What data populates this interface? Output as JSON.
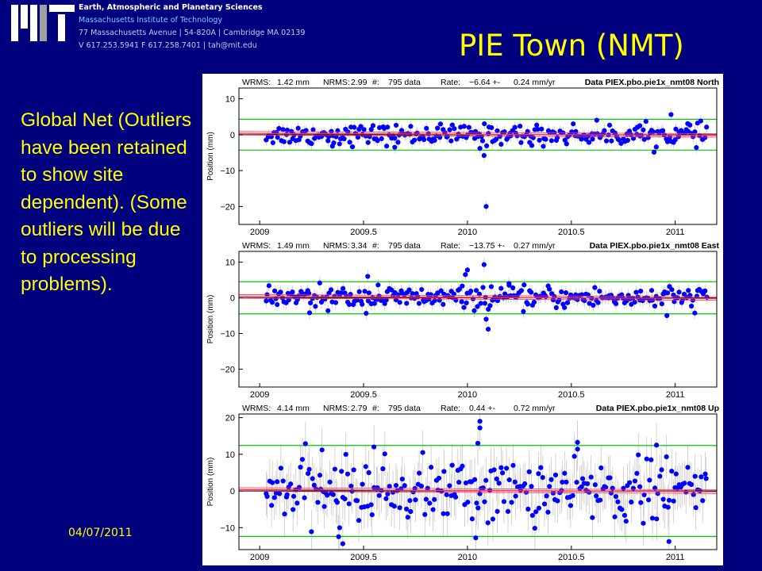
{
  "header": {
    "department": "Earth, Atmospheric and Planetary Sciences",
    "institution": "Massachusetts Institute of Technology",
    "address": "77 Massachusetts Avenue | 54-820A | Cambridge MA 02139",
    "phone": "V 617.253.5941 F 617.258.7401 | tah@mit.edu"
  },
  "slide": {
    "title": "PIE Town (NMT)",
    "caption": "Global Net (Outliers have been retained to show site dependent). (Some outliers will be due to processing problems).",
    "date": "04/07/2011"
  },
  "colors": {
    "background": "#00007f",
    "accent_text": "#ffff00",
    "points": "#0000ff",
    "limit_lines": "#00cc00",
    "fit_line": "#ff3355",
    "error_bars": "#c8c8c8"
  },
  "chart_data": [
    {
      "type": "scatter",
      "title": "Data PIEX.pbo.pie1x_nmt08 North",
      "stats": {
        "wrms": "WRMS:",
        "wrms_value": "1.42 mm",
        "nrms": "NRMS:",
        "nrms_value": "2.99",
        "n": "#:",
        "n_value": "795 data",
        "rate": "Rate:",
        "rate_value": "−6.64 +-",
        "rate_sigma": "0.24 mm/yr"
      },
      "ylabel": "Position (mm)",
      "xlim": [
        2008.9,
        2011.2
      ],
      "ylim": [
        -25,
        13
      ],
      "x_ticks": [
        2009,
        2009.5,
        2010,
        2010.5,
        2011
      ],
      "x_tick_labels": [
        "2009",
        "2009.5",
        "2010",
        "2010.5",
        "2011"
      ],
      "y_ticks": [
        10,
        0,
        -10,
        -20
      ],
      "y_tick_labels": [
        "10",
        "0",
        "−10",
        "−20"
      ],
      "limit_lines": [
        4.3,
        -4.3
      ],
      "scatter_sigma": 1.4,
      "error_bar": 1.6,
      "outliers": [
        [
          2010.06,
          -3.8
        ],
        [
          2010.08,
          -5.8
        ],
        [
          2010.09,
          -20.0
        ],
        [
          2009.35,
          -3.2
        ],
        [
          2010.31,
          -3.0
        ],
        [
          2010.83,
          2.5
        ],
        [
          2010.98,
          5.6
        ],
        [
          2009.65,
          -3.5
        ],
        [
          2011.06,
          3.1
        ]
      ]
    },
    {
      "type": "scatter",
      "title": "Data PIEX.pbo.pie1x_nmt08 East",
      "stats": {
        "wrms": "WRMS:",
        "wrms_value": "1.49 mm",
        "nrms": "NRMS:",
        "nrms_value": "3.34",
        "n": "#:",
        "n_value": "795 data",
        "rate": "Rate:",
        "rate_value": "−13.75 +-",
        "rate_sigma": "0.27 mm/yr"
      },
      "ylabel": "Position (mm)",
      "xlim": [
        2008.9,
        2011.2
      ],
      "ylim": [
        -25,
        13
      ],
      "x_ticks": [
        2009,
        2009.5,
        2010,
        2010.5,
        2011
      ],
      "x_tick_labels": [
        "2009",
        "2009.5",
        "2010",
        "2010.5",
        "2011"
      ],
      "y_ticks": [
        10,
        0,
        -10,
        -20
      ],
      "y_tick_labels": [
        "10",
        "0",
        "−10",
        "−20"
      ],
      "limit_lines": [
        4.5,
        -4.5
      ],
      "scatter_sigma": 1.5,
      "error_bar": 1.8,
      "outliers": [
        [
          2009.52,
          6.0
        ],
        [
          2009.99,
          6.5
        ],
        [
          2010.0,
          7.8
        ],
        [
          2010.08,
          9.3
        ],
        [
          2010.09,
          -6.0
        ],
        [
          2010.1,
          -8.8
        ],
        [
          2009.24,
          -4.2
        ],
        [
          2009.57,
          3.6
        ],
        [
          2010.96,
          -5.0
        ],
        [
          2010.2,
          4.0
        ]
      ]
    },
    {
      "type": "scatter",
      "title": "Data PIEX.pbo.pie1x_nmt08 Up",
      "stats": {
        "wrms": "WRMS:",
        "wrms_value": "4.14 mm",
        "nrms": "NRMS:",
        "nrms_value": "2.79",
        "n": "#:",
        "n_value": "795 data",
        "rate": "Rate:",
        "rate_value": "0.44 +-",
        "rate_sigma": "0.72 mm/yr"
      },
      "ylabel": "Position (mm)",
      "xlim": [
        2008.9,
        2011.2
      ],
      "ylim": [
        -16,
        21
      ],
      "x_ticks": [
        2009,
        2009.5,
        2010,
        2010.5,
        2011
      ],
      "x_tick_labels": [
        "2009",
        "2009.5",
        "2010",
        "2010.5",
        "2011"
      ],
      "y_ticks": [
        20,
        10,
        0,
        -10
      ],
      "y_tick_labels": [
        "20",
        "10",
        "0",
        "−10"
      ],
      "limit_lines": [
        12.4,
        -12.4
      ],
      "scatter_sigma": 4.2,
      "error_bar": 6.0,
      "outliers": [
        [
          2010.06,
          19.0
        ],
        [
          2010.06,
          17.2
        ],
        [
          2010.05,
          13.0
        ],
        [
          2009.4,
          -14.4
        ],
        [
          2009.38,
          -12.5
        ],
        [
          2010.97,
          -13.8
        ],
        [
          2010.04,
          -12.8
        ],
        [
          2009.55,
          12.0
        ],
        [
          2010.53,
          11.4
        ],
        [
          2010.91,
          12.5
        ],
        [
          2009.3,
          11.2
        ]
      ]
    }
  ]
}
